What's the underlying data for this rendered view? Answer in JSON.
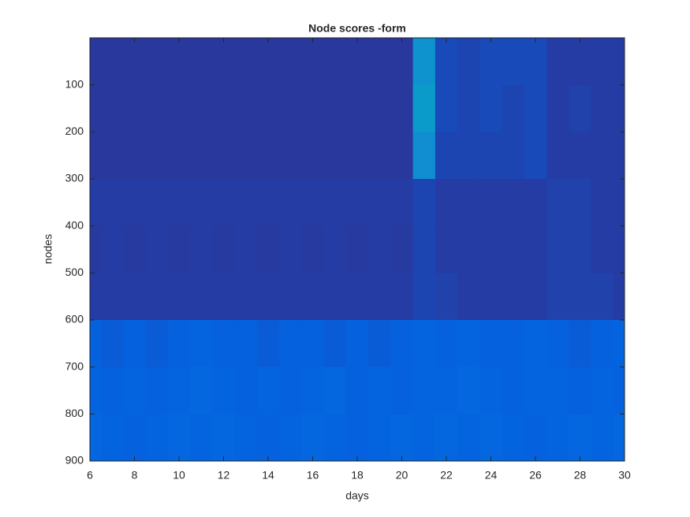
{
  "chart_data": {
    "type": "heatmap",
    "title": "Node scores -form",
    "x_label": "days",
    "y_label": "nodes",
    "x": [
      6,
      7,
      8,
      9,
      10,
      11,
      12,
      13,
      14,
      15,
      16,
      17,
      18,
      19,
      20,
      21,
      22,
      23,
      24,
      25,
      26,
      27,
      28,
      29,
      30
    ],
    "y_bins": [
      0,
      100,
      200,
      300,
      400,
      500,
      600,
      700,
      800,
      900
    ],
    "values": [
      [
        0.03,
        0.03,
        0.03,
        0.03,
        0.03,
        0.03,
        0.03,
        0.03,
        0.03,
        0.03,
        0.03,
        0.03,
        0.03,
        0.03,
        0.03,
        0.3,
        0.07,
        0.06,
        0.07,
        0.07,
        0.07,
        0.04,
        0.04,
        0.04,
        0.04
      ],
      [
        0.03,
        0.03,
        0.03,
        0.03,
        0.03,
        0.03,
        0.03,
        0.03,
        0.03,
        0.03,
        0.03,
        0.03,
        0.03,
        0.03,
        0.03,
        0.33,
        0.07,
        0.06,
        0.07,
        0.06,
        0.07,
        0.04,
        0.05,
        0.04,
        0.04
      ],
      [
        0.03,
        0.03,
        0.03,
        0.03,
        0.03,
        0.03,
        0.03,
        0.03,
        0.03,
        0.03,
        0.03,
        0.03,
        0.03,
        0.03,
        0.03,
        0.28,
        0.06,
        0.06,
        0.06,
        0.06,
        0.07,
        0.04,
        0.04,
        0.04,
        0.04
      ],
      [
        0.04,
        0.04,
        0.04,
        0.04,
        0.04,
        0.04,
        0.04,
        0.04,
        0.04,
        0.04,
        0.04,
        0.04,
        0.04,
        0.04,
        0.04,
        0.06,
        0.04,
        0.04,
        0.04,
        0.04,
        0.04,
        0.05,
        0.05,
        0.04,
        0.04
      ],
      [
        0.035,
        0.04,
        0.035,
        0.04,
        0.035,
        0.04,
        0.035,
        0.04,
        0.035,
        0.04,
        0.035,
        0.04,
        0.035,
        0.04,
        0.035,
        0.06,
        0.04,
        0.04,
        0.04,
        0.04,
        0.04,
        0.05,
        0.05,
        0.04,
        0.04
      ],
      [
        0.04,
        0.04,
        0.04,
        0.04,
        0.04,
        0.04,
        0.04,
        0.04,
        0.04,
        0.04,
        0.04,
        0.04,
        0.04,
        0.04,
        0.04,
        0.06,
        0.05,
        0.04,
        0.04,
        0.04,
        0.04,
        0.05,
        0.05,
        0.05,
        0.04
      ],
      [
        0.12,
        0.11,
        0.12,
        0.11,
        0.12,
        0.13,
        0.12,
        0.12,
        0.11,
        0.12,
        0.12,
        0.11,
        0.12,
        0.11,
        0.12,
        0.13,
        0.12,
        0.13,
        0.12,
        0.12,
        0.13,
        0.12,
        0.11,
        0.12,
        0.13
      ],
      [
        0.13,
        0.12,
        0.13,
        0.12,
        0.13,
        0.14,
        0.13,
        0.12,
        0.13,
        0.12,
        0.13,
        0.14,
        0.12,
        0.13,
        0.12,
        0.13,
        0.13,
        0.14,
        0.13,
        0.12,
        0.13,
        0.13,
        0.12,
        0.13,
        0.12
      ],
      [
        0.14,
        0.13,
        0.12,
        0.13,
        0.14,
        0.13,
        0.14,
        0.13,
        0.12,
        0.13,
        0.14,
        0.13,
        0.12,
        0.13,
        0.14,
        0.13,
        0.14,
        0.13,
        0.14,
        0.13,
        0.12,
        0.13,
        0.14,
        0.13,
        0.14
      ]
    ],
    "colormap": [
      "#352a87",
      "#0363e1",
      "#1485d4",
      "#06a7c6",
      "#38b99e",
      "#92bf73",
      "#e4bb47",
      "#fcce2e",
      "#f9fb0e"
    ],
    "clim": [
      0,
      1
    ],
    "xlim": [
      6,
      30
    ],
    "xticks": [
      6,
      8,
      10,
      12,
      14,
      16,
      18,
      20,
      22,
      24,
      26,
      28,
      30
    ],
    "ylim": [
      0,
      900
    ],
    "y_reversed": true,
    "yticks": [
      100,
      200,
      300,
      400,
      500,
      600,
      700,
      800,
      900
    ]
  }
}
